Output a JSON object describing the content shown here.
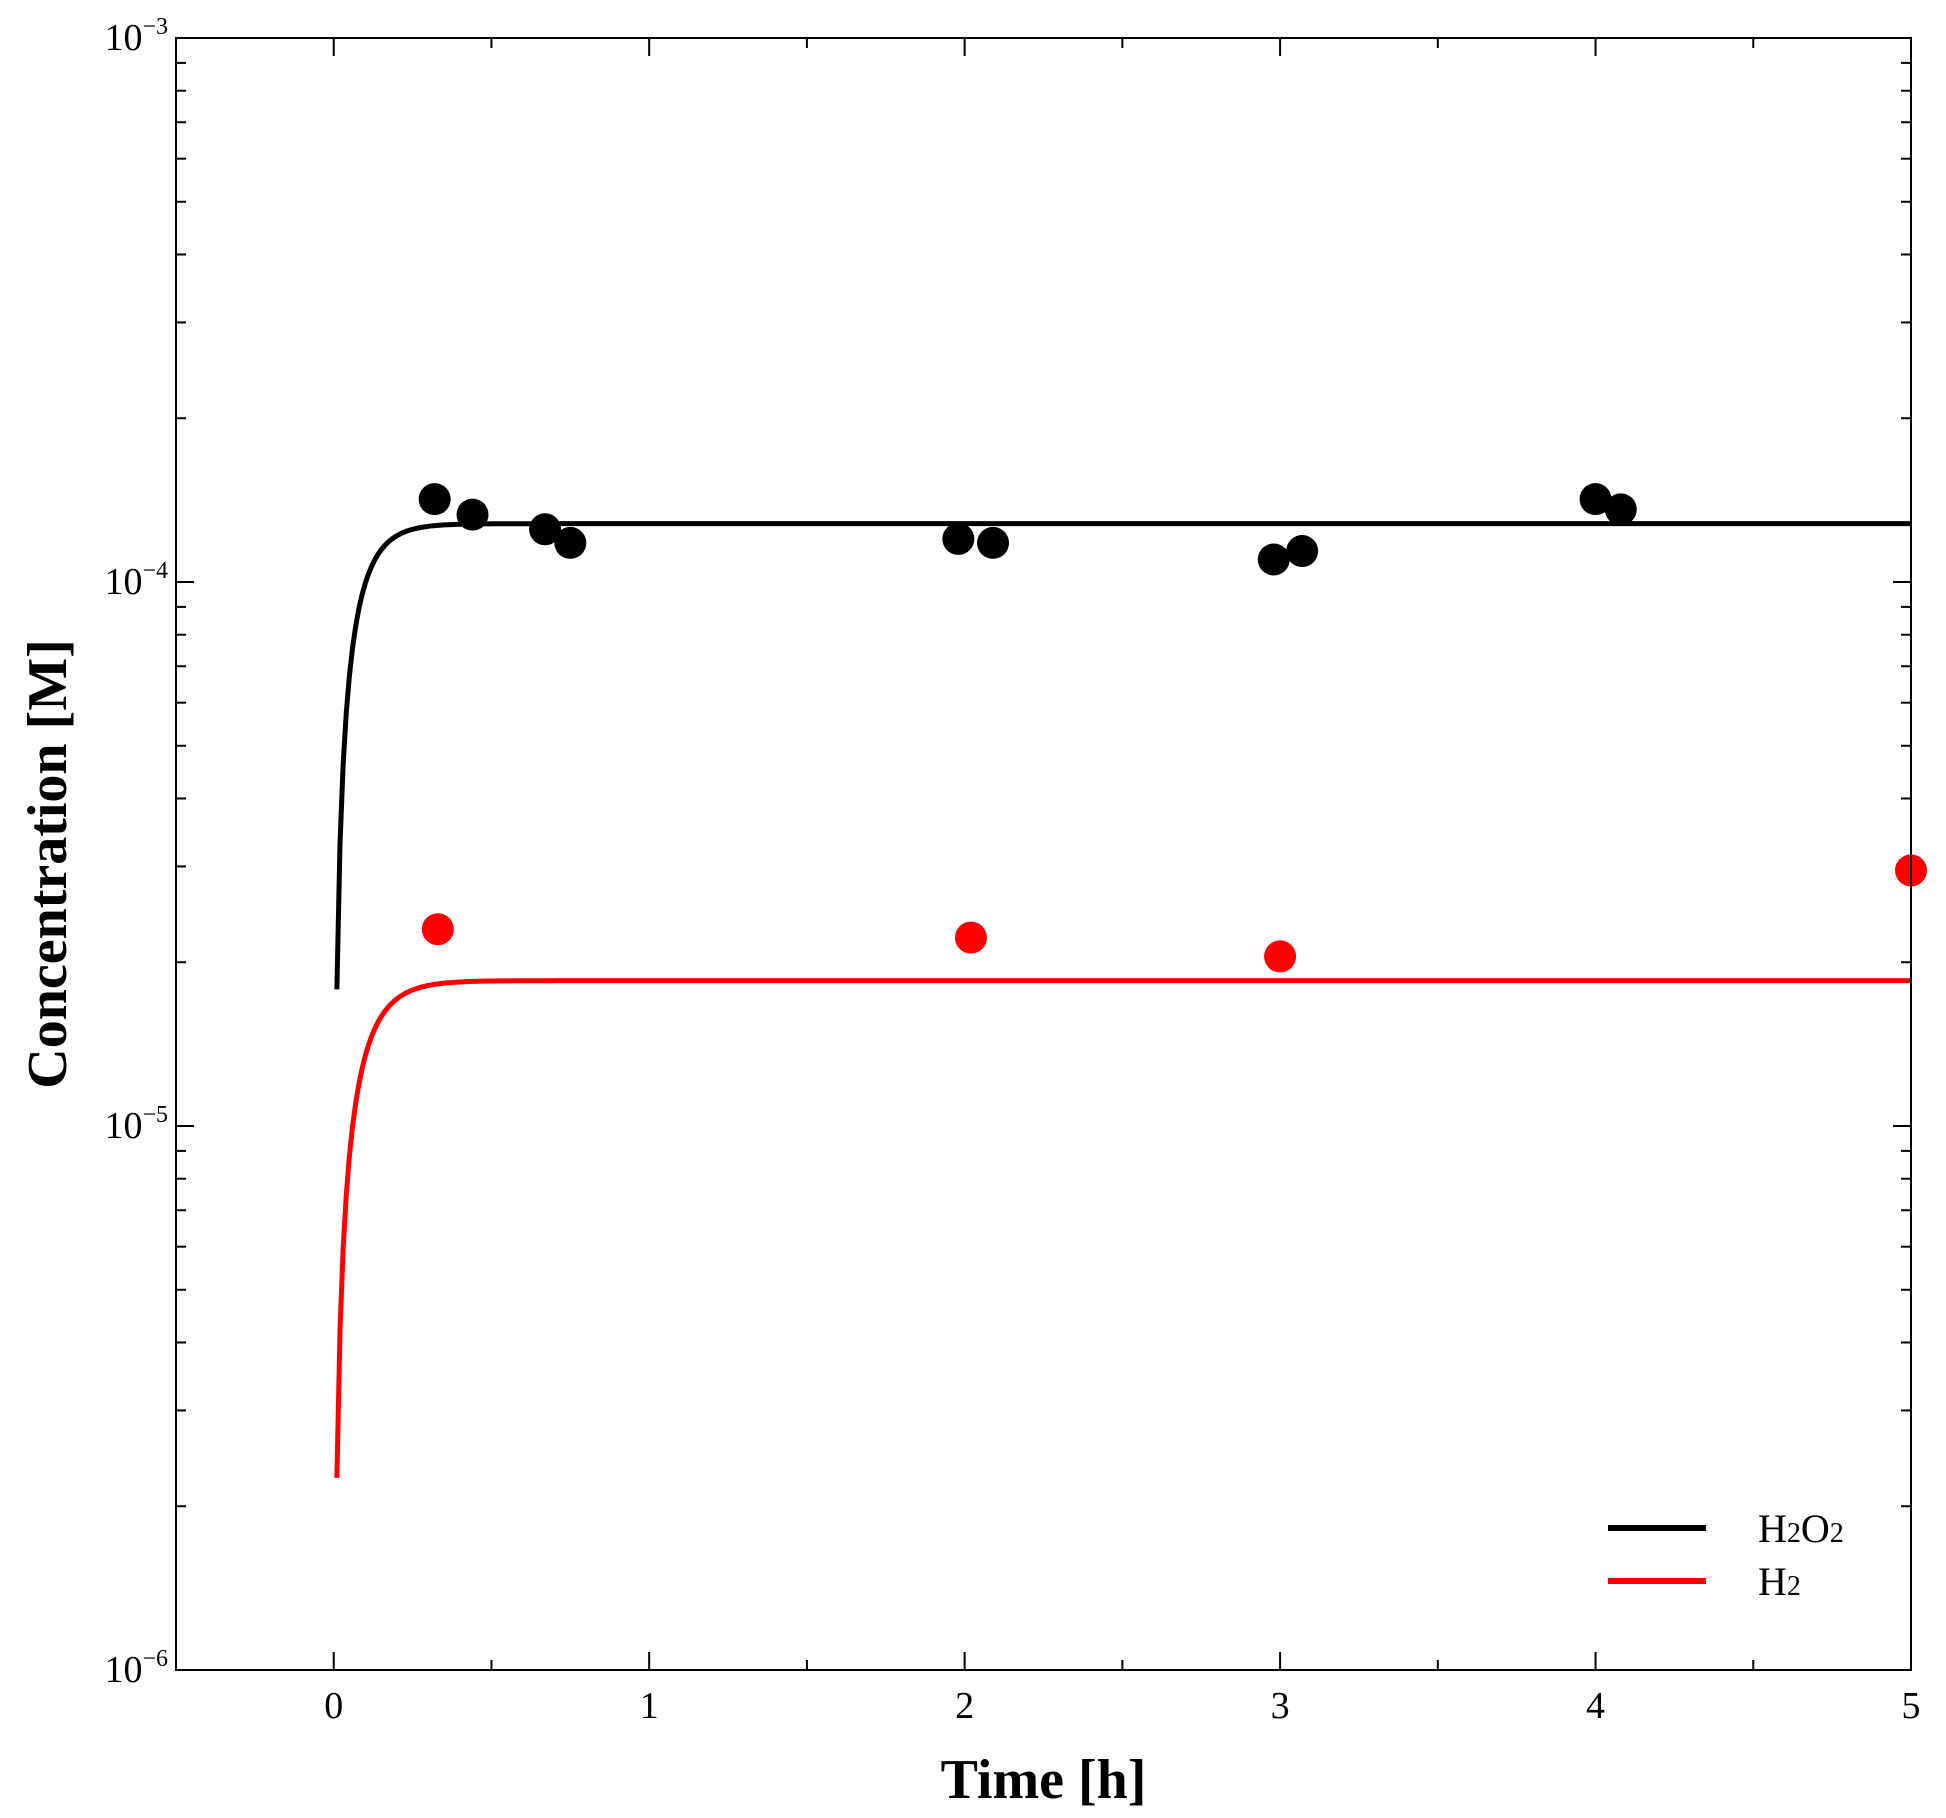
{
  "chart_data": {
    "type": "line",
    "xlabel": "Time [h]",
    "ylabel": "Concentration [M]",
    "xlim": [
      -0.5,
      5
    ],
    "ylim": [
      1e-06,
      0.001
    ],
    "yscale": "log",
    "x_ticks": [
      {
        "value": 0,
        "label": "0"
      },
      {
        "value": 1,
        "label": "1"
      },
      {
        "value": 2,
        "label": "2"
      },
      {
        "value": 3,
        "label": "3"
      },
      {
        "value": 4,
        "label": "4"
      },
      {
        "value": 5,
        "label": "5"
      }
    ],
    "y_ticks": [
      {
        "value": 1e-06,
        "base": "10",
        "exp": "−6"
      },
      {
        "value": 1e-05,
        "base": "10",
        "exp": "−5"
      },
      {
        "value": 0.0001,
        "base": "10",
        "exp": "−4"
      },
      {
        "value": 0.001,
        "base": "10",
        "exp": "−3"
      }
    ],
    "legend_position": "bottom-right",
    "series": [
      {
        "name": "H2O2",
        "legend": {
          "p1": "H",
          "s1": "2",
          "p2": "O",
          "s2": "2"
        },
        "color": "#000000",
        "model": {
          "c_inf": 0.000128,
          "k": 15
        },
        "points": [
          {
            "x": 0.32,
            "y": 0.000142
          },
          {
            "x": 0.44,
            "y": 0.000133
          },
          {
            "x": 0.67,
            "y": 0.000125
          },
          {
            "x": 0.75,
            "y": 0.000118
          },
          {
            "x": 1.98,
            "y": 0.00012
          },
          {
            "x": 2.09,
            "y": 0.000118
          },
          {
            "x": 2.98,
            "y": 0.00011
          },
          {
            "x": 3.07,
            "y": 0.000114
          },
          {
            "x": 4.0,
            "y": 0.000142
          },
          {
            "x": 4.08,
            "y": 0.000136
          }
        ]
      },
      {
        "name": "H2",
        "legend": {
          "p1": "H",
          "s1": "2",
          "p2": "",
          "s2": ""
        },
        "color": "#ff0000",
        "model": {
          "c_inf": 1.85e-05,
          "k": 13
        },
        "points": [
          {
            "x": 0.33,
            "y": 2.3e-05
          },
          {
            "x": 2.02,
            "y": 2.22e-05
          },
          {
            "x": 3.0,
            "y": 2.05e-05
          },
          {
            "x": 5.0,
            "y": 2.95e-05
          }
        ]
      }
    ]
  }
}
